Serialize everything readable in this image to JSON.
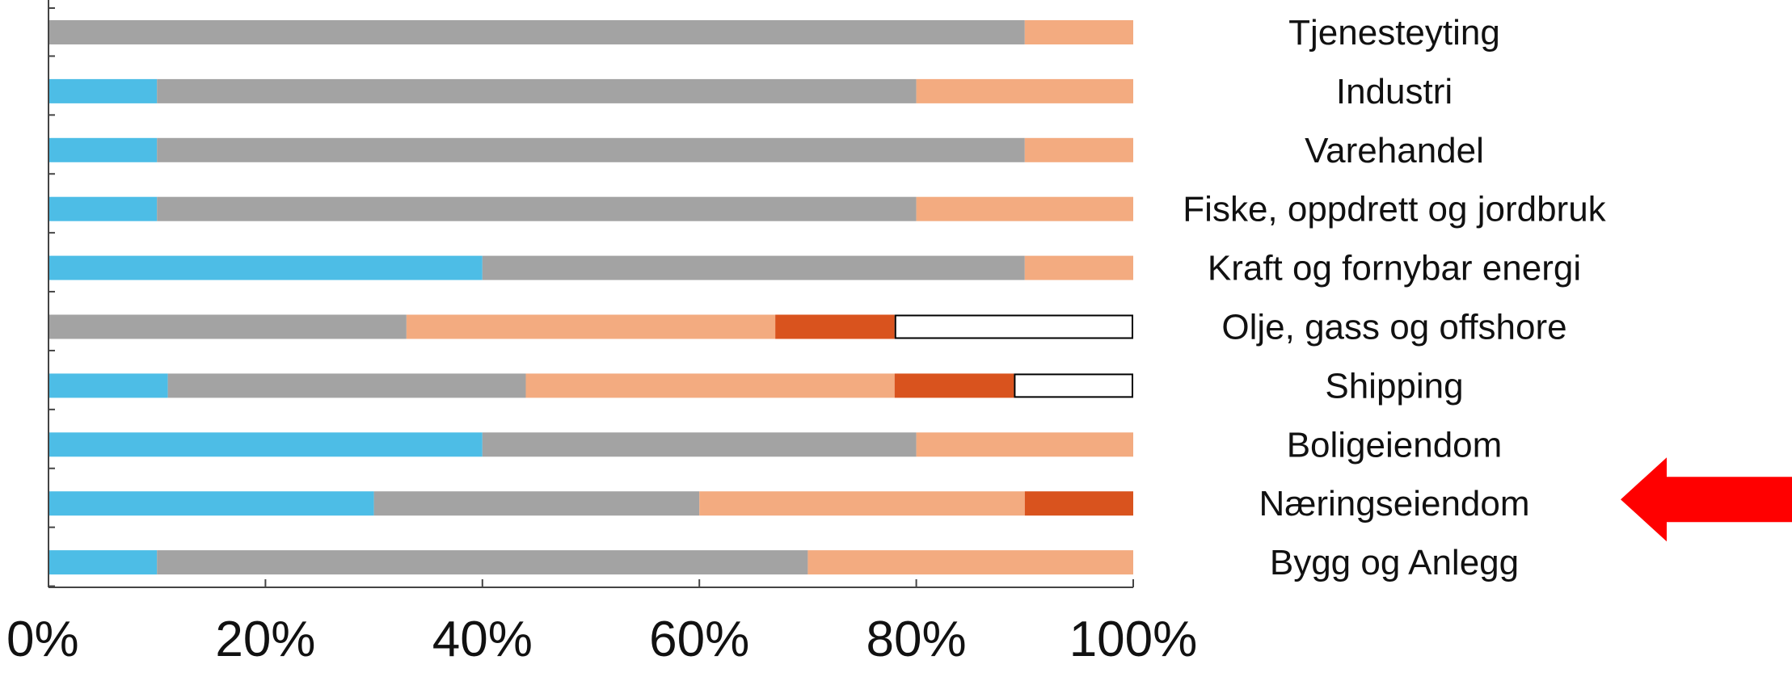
{
  "chart_data": {
    "type": "bar",
    "orientation": "horizontal",
    "stacked": true,
    "title": "",
    "xlabel": "",
    "ylabel": "",
    "xlim": [
      0,
      100
    ],
    "x_tick_labels": [
      "0%",
      "20%",
      "40%",
      "60%",
      "80%",
      "100%"
    ],
    "x_tick_values": [
      0,
      20,
      40,
      60,
      80,
      100
    ],
    "grid": false,
    "legend": "none",
    "categories": [
      "Tjenesteyting",
      "Industri",
      "Varehandel",
      "Fiske, oppdrett og jordbruk",
      "Kraft og fornybar energi",
      "Olje, gass og offshore",
      "Shipping",
      "Boligeiendom",
      "Næringseiendom",
      "Bygg og Anlegg"
    ],
    "series": [
      {
        "color": "#4dbde6",
        "values": [
          0,
          10,
          10,
          10,
          40,
          0,
          11,
          40,
          30,
          10
        ]
      },
      {
        "color": "#a3a3a3",
        "values": [
          90,
          70,
          80,
          70,
          50,
          33,
          33,
          40,
          30,
          60
        ]
      },
      {
        "color": "#f3ab80",
        "values": [
          10,
          20,
          10,
          20,
          10,
          34,
          34,
          20,
          30,
          30
        ]
      },
      {
        "color": "#d9531e",
        "values": [
          0,
          0,
          0,
          0,
          0,
          11,
          11,
          0,
          10,
          0
        ]
      },
      {
        "color": "#ffffff",
        "values": [
          0,
          0,
          0,
          0,
          0,
          22,
          11,
          0,
          0,
          0
        ]
      }
    ],
    "highlight": {
      "category": "Næringseiendom",
      "marker": "arrow-left-icon",
      "color": "#ff0000"
    }
  }
}
